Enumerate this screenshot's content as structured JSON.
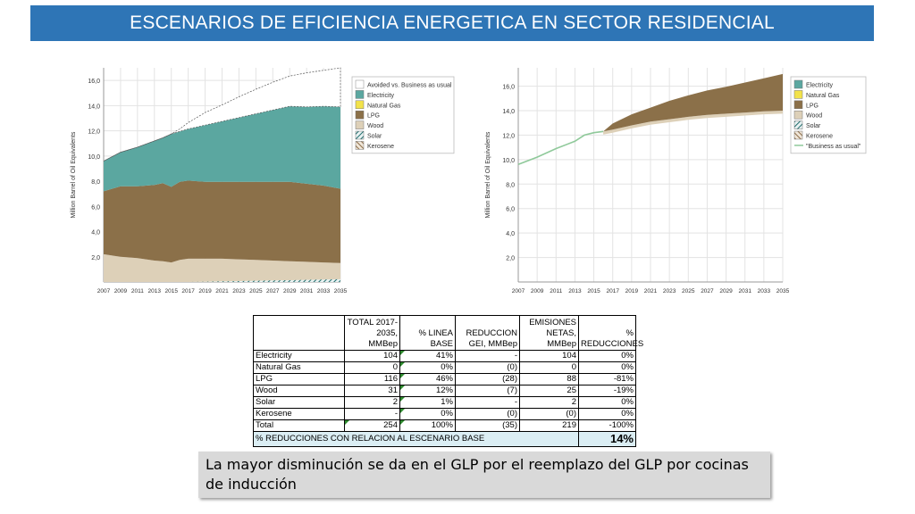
{
  "title": "ESCENARIOS DE EFICIENCIA ENERGETICA EN SECTOR RESIDENCIAL",
  "colors": {
    "title_bg": "#2e75b6",
    "electricity": "#5ba7a0",
    "natural_gas": "#f2e24a",
    "lpg": "#8b7049",
    "wood": "#ddd0b8",
    "solar": "#1e6b6b",
    "kerosene": "#8b6d4a",
    "bau_line": "#8fc99a",
    "footer_bg": "#dbeef4"
  },
  "chart_data": [
    {
      "type": "area",
      "ylabel": "Million Barrel of Oil Equivalents",
      "xlabel": "",
      "ylim": [
        0,
        17
      ],
      "yticks": [
        "2,0",
        "4,0",
        "6,0",
        "8,0",
        "10,0",
        "12,0",
        "14,0",
        "16,0"
      ],
      "ytick_values": [
        2,
        4,
        6,
        8,
        10,
        12,
        14,
        16
      ],
      "xlim": [
        2007,
        2035
      ],
      "xticks": [
        "2007",
        "2009",
        "2011",
        "2013",
        "2015",
        "2017",
        "2019",
        "2021",
        "2023",
        "2025",
        "2027",
        "2029",
        "2031",
        "2033",
        "2035"
      ],
      "grid": true,
      "legend_position": "top-right",
      "legend": [
        "Avoided vs. Business as usual",
        "Electricity",
        "Natural Gas",
        "LPG",
        "Wood",
        "Solar",
        "Kerosene"
      ],
      "x": [
        2007,
        2009,
        2011,
        2013,
        2014,
        2015,
        2016,
        2017,
        2019,
        2021,
        2023,
        2025,
        2027,
        2029,
        2031,
        2033,
        2035
      ],
      "series": [
        {
          "name": "Wood",
          "values": [
            2.2,
            2.0,
            1.9,
            1.7,
            1.65,
            1.55,
            1.75,
            1.85,
            1.85,
            1.85,
            1.8,
            1.75,
            1.7,
            1.65,
            1.6,
            1.55,
            1.5
          ]
        },
        {
          "name": "LPG",
          "values": [
            5.0,
            5.6,
            5.7,
            6.0,
            6.2,
            6.0,
            6.2,
            6.2,
            6.1,
            6.1,
            6.15,
            6.2,
            6.25,
            6.3,
            6.2,
            6.1,
            5.9
          ]
        },
        {
          "name": "Electricity",
          "values": [
            2.4,
            2.7,
            3.1,
            3.5,
            3.6,
            4.2,
            4.0,
            4.1,
            4.5,
            4.8,
            5.1,
            5.4,
            5.7,
            6.0,
            6.1,
            6.3,
            6.5
          ]
        },
        {
          "name": "Avoided vs. Business as usual",
          "values": [
            0,
            0,
            0,
            0,
            0,
            0,
            0.2,
            0.5,
            1.0,
            1.3,
            1.65,
            1.95,
            2.2,
            2.4,
            2.7,
            2.85,
            3.1
          ]
        }
      ],
      "series_small": [
        {
          "name": "Natural Gas",
          "values": [
            0,
            0,
            0,
            0,
            0,
            0,
            0,
            0,
            0,
            0,
            0,
            0,
            0,
            0,
            0,
            0,
            0
          ]
        },
        {
          "name": "Solar",
          "values": [
            0,
            0,
            0,
            0,
            0,
            0,
            0,
            0,
            0.02,
            0.05,
            0.07,
            0.1,
            0.12,
            0.14,
            0.17,
            0.19,
            0.22
          ]
        },
        {
          "name": "Kerosene",
          "values": [
            0,
            0,
            0,
            0,
            0,
            0,
            0,
            0,
            0,
            0,
            0,
            0,
            0,
            0,
            0,
            0,
            0
          ]
        }
      ]
    },
    {
      "type": "area",
      "ylabel": "Million Barrel of Oil Equivalents",
      "xlabel": "",
      "ylim": [
        0,
        17.5
      ],
      "yticks": [
        "2,0",
        "4,0",
        "6,0",
        "8,0",
        "10,0",
        "12,0",
        "14,0",
        "16,0"
      ],
      "ytick_values": [
        2,
        4,
        6,
        8,
        10,
        12,
        14,
        16
      ],
      "xlim": [
        2007,
        2035
      ],
      "xticks": [
        "2007",
        "2009",
        "2011",
        "2013",
        "2015",
        "2017",
        "2019",
        "2021",
        "2023",
        "2025",
        "2027",
        "2029",
        "2031",
        "2033",
        "2035"
      ],
      "grid": true,
      "legend_position": "top-right",
      "legend": [
        "Electricity",
        "Natural Gas",
        "LPG",
        "Wood",
        "Solar",
        "Kerosene",
        "\"Business as usual\""
      ],
      "bau_x": [
        2007,
        2009,
        2011,
        2013,
        2014,
        2015,
        2016
      ],
      "bau_values": [
        9.6,
        10.2,
        10.9,
        11.5,
        12.0,
        12.2,
        12.3
      ],
      "x": [
        2016,
        2017,
        2019,
        2021,
        2023,
        2025,
        2027,
        2029,
        2031,
        2033,
        2035
      ],
      "series": [
        {
          "name": "Wood",
          "values": [
            12.3,
            12.45,
            12.8,
            13.1,
            13.3,
            13.5,
            13.65,
            13.75,
            13.85,
            13.95,
            14.0
          ]
        },
        {
          "name": "LPG",
          "values": [
            0.0,
            0.5,
            0.9,
            1.15,
            1.5,
            1.75,
            2.0,
            2.2,
            2.45,
            2.7,
            3.0
          ]
        }
      ]
    }
  ],
  "table": {
    "headers": [
      "",
      "TOTAL 2017-2035, MMBep",
      "% LINEA BASE",
      "REDUCCION GEI, MMBep",
      "EMISIONES NETAS, MMBep",
      "% REDUCCIONES"
    ],
    "rows": [
      [
        "Electricity",
        "104",
        "41%",
        "-",
        "104",
        "0%"
      ],
      [
        "Natural Gas",
        "0",
        "0%",
        "(0)",
        "0",
        "0%"
      ],
      [
        "LPG",
        "116",
        "46%",
        "(28)",
        "88",
        "-81%"
      ],
      [
        "Wood",
        "31",
        "12%",
        "(7)",
        "25",
        "-19%"
      ],
      [
        "Solar",
        "2",
        "1%",
        "-",
        "2",
        "0%"
      ],
      [
        "Kerosene",
        "-",
        "0%",
        "(0)",
        "(0)",
        "0%"
      ],
      [
        "Total",
        "254",
        "100%",
        "(35)",
        "219",
        "-100%"
      ]
    ],
    "footer_label": "% REDUCCIONES CON RELACION AL ESCENARIO BASE",
    "footer_value": "14%"
  },
  "note": "La mayor disminución se da en el GLP por el reemplazo del GLP por cocinas de inducción"
}
